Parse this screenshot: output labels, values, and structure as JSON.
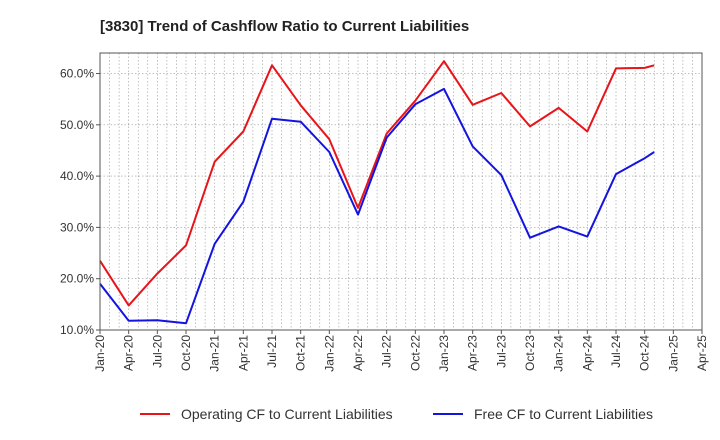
{
  "chart_data": {
    "type": "line",
    "title": "[3830]  Trend of Cashflow Ratio to Current Liabilities",
    "xlabel": "",
    "ylabel": "",
    "ylim": [
      10,
      64
    ],
    "grid": true,
    "legend_position": "bottom",
    "y_ticks": [
      10,
      20,
      30,
      40,
      50,
      60
    ],
    "y_tick_labels": [
      "10.0%",
      "20.0%",
      "30.0%",
      "40.0%",
      "50.0%",
      "60.0%"
    ],
    "x_tick_labels": [
      "Jan-20",
      "Apr-20",
      "Jul-20",
      "Oct-20",
      "Jan-21",
      "Apr-21",
      "Jul-21",
      "Oct-21",
      "Jan-22",
      "Apr-22",
      "Jul-22",
      "Oct-22",
      "Jan-23",
      "Apr-23",
      "Jul-23",
      "Oct-23",
      "Jan-24",
      "Apr-24",
      "Jul-24",
      "Oct-24",
      "Jan-25",
      "Apr-25"
    ],
    "x": [
      "2020-01",
      "2020-02",
      "2020-03",
      "2020-04",
      "2020-05",
      "2020-06",
      "2020-07",
      "2020-08",
      "2020-09",
      "2020-10",
      "2020-11",
      "2020-12",
      "2021-01",
      "2021-02",
      "2021-03",
      "2021-04",
      "2021-05",
      "2021-06",
      "2021-07",
      "2021-08",
      "2021-09",
      "2021-10",
      "2021-11",
      "2021-12",
      "2022-01",
      "2022-02",
      "2022-03",
      "2022-04",
      "2022-05",
      "2022-06",
      "2022-07",
      "2022-08",
      "2022-09",
      "2022-10",
      "2022-11",
      "2022-12",
      "2023-01",
      "2023-02",
      "2023-03",
      "2023-04",
      "2023-05",
      "2023-06",
      "2023-07",
      "2023-08",
      "2023-09",
      "2023-10",
      "2023-11",
      "2023-12",
      "2024-01",
      "2024-02",
      "2024-03",
      "2024-04",
      "2024-05",
      "2024-06",
      "2024-07",
      "2024-08",
      "2024-09",
      "2024-10",
      "2024-11"
    ],
    "series": [
      {
        "name": "Operating CF to Current Liabilities",
        "color": "#e8141a",
        "values": [
          23.5,
          null,
          null,
          14.8,
          null,
          null,
          21.0,
          null,
          null,
          26.5,
          null,
          null,
          42.8,
          null,
          null,
          48.7,
          null,
          null,
          61.6,
          null,
          null,
          53.8,
          null,
          null,
          47.2,
          null,
          null,
          33.8,
          null,
          null,
          48.3,
          null,
          null,
          54.7,
          null,
          null,
          62.4,
          null,
          null,
          53.9,
          null,
          null,
          56.2,
          null,
          null,
          49.7,
          null,
          null,
          53.3,
          null,
          null,
          48.7,
          null,
          null,
          61.0,
          null,
          null,
          61.1,
          61.6
        ]
      },
      {
        "name": "Free CF to Current Liabilities",
        "color": "#1414e0",
        "values": [
          19.0,
          null,
          null,
          11.8,
          null,
          null,
          11.9,
          null,
          null,
          11.3,
          null,
          null,
          26.8,
          null,
          null,
          35.0,
          null,
          null,
          51.2,
          null,
          null,
          50.6,
          null,
          null,
          44.7,
          null,
          null,
          32.5,
          null,
          null,
          47.5,
          null,
          null,
          54.0,
          null,
          null,
          57.0,
          null,
          null,
          45.8,
          null,
          null,
          40.2,
          null,
          null,
          28.0,
          null,
          null,
          30.2,
          null,
          null,
          28.2,
          null,
          null,
          40.4,
          null,
          null,
          43.5,
          44.7
        ]
      }
    ]
  }
}
